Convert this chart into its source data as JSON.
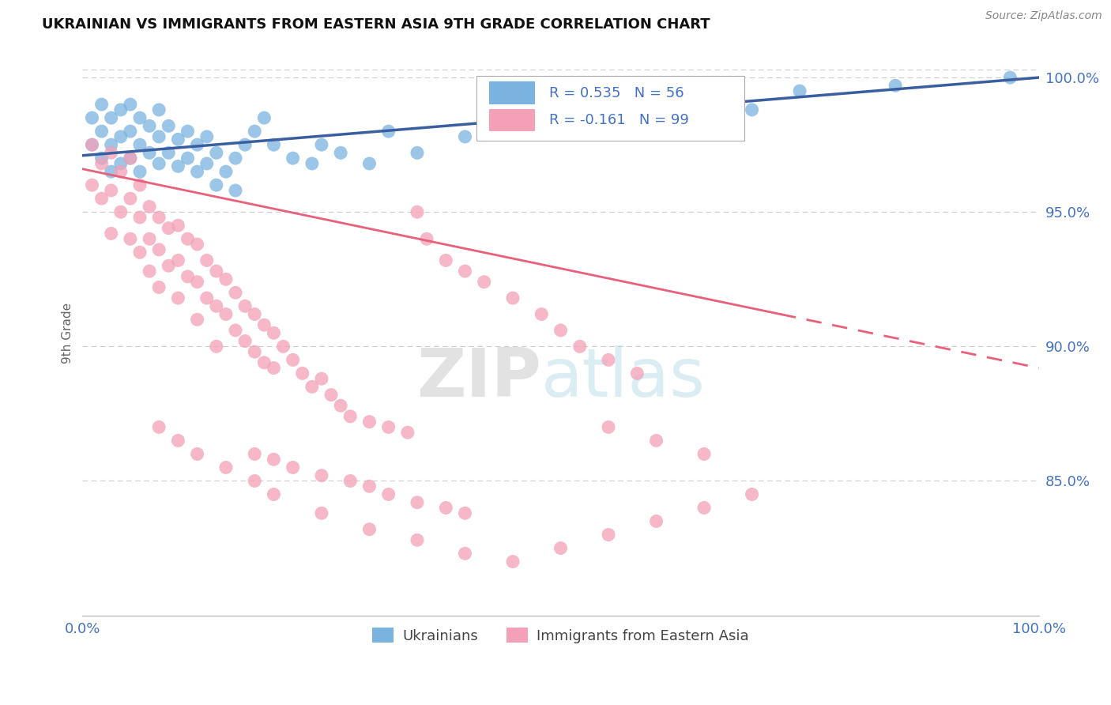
{
  "title": "UKRAINIAN VS IMMIGRANTS FROM EASTERN ASIA 9TH GRADE CORRELATION CHART",
  "source_text": "Source: ZipAtlas.com",
  "ylabel": "9th Grade",
  "xlim": [
    0.0,
    1.0
  ],
  "ylim": [
    0.8,
    1.01
  ],
  "y_ticks": [
    0.85,
    0.9,
    0.95,
    1.0
  ],
  "y_tick_labels": [
    "85.0%",
    "90.0%",
    "95.0%",
    "100.0%"
  ],
  "blue_color": "#7ab3e0",
  "pink_color": "#f4a0b8",
  "blue_line_color": "#3a5fa0",
  "pink_line_color": "#e8607a",
  "legend_R_blue": "R = 0.535",
  "legend_N_blue": "N = 56",
  "legend_R_pink": "R = -0.161",
  "legend_N_pink": "N = 99",
  "blue_label": "Ukrainians",
  "pink_label": "Immigrants from Eastern Asia",
  "watermark_zip": "ZIP",
  "watermark_atlas": "atlas",
  "background_color": "#ffffff",
  "grid_color": "#cccccc",
  "axis_label_color": "#4472c4",
  "title_color": "#111111",
  "blue_scatter_x": [
    0.01,
    0.01,
    0.02,
    0.02,
    0.02,
    0.03,
    0.03,
    0.03,
    0.04,
    0.04,
    0.04,
    0.05,
    0.05,
    0.05,
    0.06,
    0.06,
    0.06,
    0.07,
    0.07,
    0.08,
    0.08,
    0.08,
    0.09,
    0.09,
    0.1,
    0.1,
    0.11,
    0.11,
    0.12,
    0.12,
    0.13,
    0.13,
    0.14,
    0.14,
    0.15,
    0.16,
    0.16,
    0.17,
    0.18,
    0.19,
    0.2,
    0.22,
    0.24,
    0.25,
    0.27,
    0.3,
    0.32,
    0.35,
    0.4,
    0.5,
    0.6,
    0.65,
    0.7,
    0.75,
    0.85,
    0.97
  ],
  "blue_scatter_y": [
    0.975,
    0.985,
    0.97,
    0.98,
    0.99,
    0.965,
    0.975,
    0.985,
    0.968,
    0.978,
    0.988,
    0.97,
    0.98,
    0.99,
    0.965,
    0.975,
    0.985,
    0.972,
    0.982,
    0.968,
    0.978,
    0.988,
    0.972,
    0.982,
    0.967,
    0.977,
    0.97,
    0.98,
    0.965,
    0.975,
    0.968,
    0.978,
    0.96,
    0.972,
    0.965,
    0.958,
    0.97,
    0.975,
    0.98,
    0.985,
    0.975,
    0.97,
    0.968,
    0.975,
    0.972,
    0.968,
    0.98,
    0.972,
    0.978,
    0.985,
    0.99,
    0.992,
    0.988,
    0.995,
    0.997,
    1.0
  ],
  "pink_scatter_x": [
    0.01,
    0.01,
    0.02,
    0.02,
    0.03,
    0.03,
    0.03,
    0.04,
    0.04,
    0.05,
    0.05,
    0.05,
    0.06,
    0.06,
    0.06,
    0.07,
    0.07,
    0.07,
    0.08,
    0.08,
    0.08,
    0.09,
    0.09,
    0.1,
    0.1,
    0.1,
    0.11,
    0.11,
    0.12,
    0.12,
    0.12,
    0.13,
    0.13,
    0.14,
    0.14,
    0.14,
    0.15,
    0.15,
    0.16,
    0.16,
    0.17,
    0.17,
    0.18,
    0.18,
    0.19,
    0.19,
    0.2,
    0.2,
    0.21,
    0.22,
    0.23,
    0.24,
    0.25,
    0.26,
    0.27,
    0.28,
    0.3,
    0.32,
    0.34,
    0.35,
    0.36,
    0.38,
    0.4,
    0.42,
    0.45,
    0.48,
    0.5,
    0.52,
    0.55,
    0.58,
    0.18,
    0.2,
    0.22,
    0.25,
    0.28,
    0.3,
    0.32,
    0.35,
    0.38,
    0.4,
    0.08,
    0.1,
    0.12,
    0.15,
    0.18,
    0.2,
    0.25,
    0.3,
    0.35,
    0.4,
    0.45,
    0.5,
    0.55,
    0.6,
    0.65,
    0.7,
    0.55,
    0.6,
    0.65
  ],
  "pink_scatter_y": [
    0.975,
    0.96,
    0.968,
    0.955,
    0.972,
    0.958,
    0.942,
    0.965,
    0.95,
    0.97,
    0.955,
    0.94,
    0.96,
    0.948,
    0.935,
    0.952,
    0.94,
    0.928,
    0.948,
    0.936,
    0.922,
    0.944,
    0.93,
    0.945,
    0.932,
    0.918,
    0.94,
    0.926,
    0.938,
    0.924,
    0.91,
    0.932,
    0.918,
    0.928,
    0.915,
    0.9,
    0.925,
    0.912,
    0.92,
    0.906,
    0.915,
    0.902,
    0.912,
    0.898,
    0.908,
    0.894,
    0.905,
    0.892,
    0.9,
    0.895,
    0.89,
    0.885,
    0.888,
    0.882,
    0.878,
    0.874,
    0.872,
    0.87,
    0.868,
    0.95,
    0.94,
    0.932,
    0.928,
    0.924,
    0.918,
    0.912,
    0.906,
    0.9,
    0.895,
    0.89,
    0.86,
    0.858,
    0.855,
    0.852,
    0.85,
    0.848,
    0.845,
    0.842,
    0.84,
    0.838,
    0.87,
    0.865,
    0.86,
    0.855,
    0.85,
    0.845,
    0.838,
    0.832,
    0.828,
    0.823,
    0.82,
    0.825,
    0.83,
    0.835,
    0.84,
    0.845,
    0.87,
    0.865,
    0.86
  ]
}
